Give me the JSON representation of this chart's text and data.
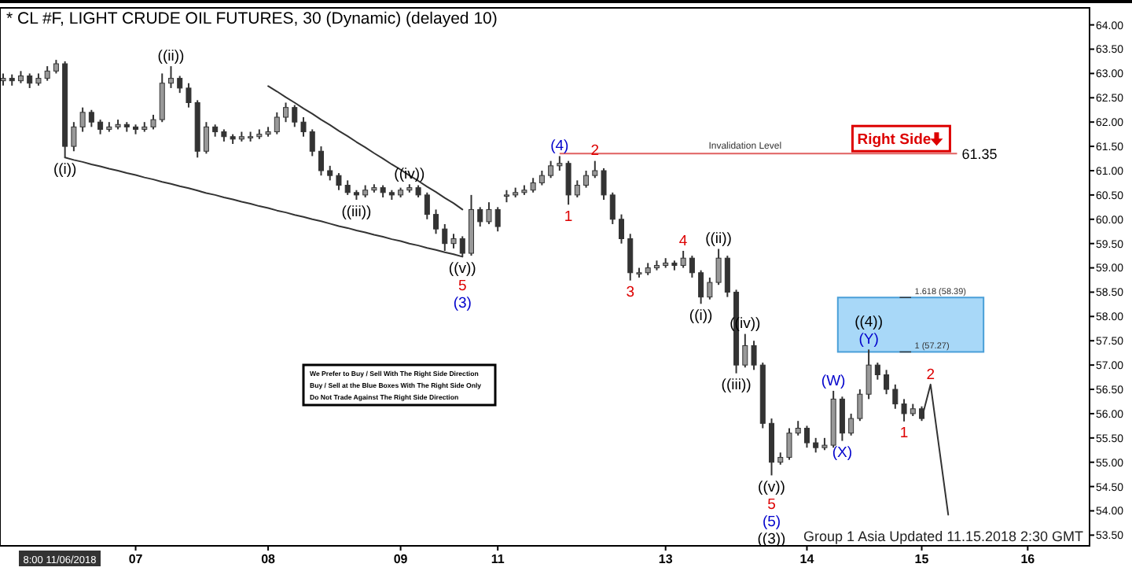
{
  "chart_data": {
    "type": "candlestick",
    "title": "* CL #F, LIGHT CRUDE OIL FUTURES, 30 (Dynamic) (delayed 10)",
    "categories": [
      null,
      null,
      null,
      null,
      null,
      null,
      null,
      null,
      null,
      null,
      null,
      null,
      null,
      null,
      null,
      "07",
      null,
      null,
      null,
      null,
      null,
      null,
      null,
      null,
      null,
      null,
      null,
      null,
      null,
      null,
      "08",
      null,
      null,
      null,
      null,
      null,
      null,
      null,
      null,
      null,
      null,
      null,
      null,
      null,
      null,
      "09",
      null,
      null,
      null,
      null,
      null,
      null,
      null,
      null,
      null,
      null,
      "11",
      null,
      null,
      null,
      null,
      null,
      null,
      null,
      null,
      null,
      null,
      null,
      null,
      null,
      null,
      null,
      null,
      null,
      null,
      "13",
      null,
      null,
      null,
      null,
      null,
      null,
      null,
      null,
      null,
      null,
      null,
      null,
      null,
      null,
      null,
      "14",
      null,
      null,
      null,
      null,
      null,
      null,
      null,
      null,
      null,
      null,
      null,
      null,
      "15",
      null,
      null,
      null,
      null,
      null,
      null,
      null,
      null,
      null,
      null,
      null,
      "16",
      null,
      null,
      null,
      null,
      null,
      null,
      null
    ],
    "ohlc": [
      [
        62.85,
        63.0,
        62.75,
        62.9
      ],
      [
        62.9,
        62.98,
        62.75,
        62.85
      ],
      [
        62.85,
        63.05,
        62.8,
        62.95
      ],
      [
        62.95,
        63.0,
        62.7,
        62.8
      ],
      [
        62.8,
        63.0,
        62.75,
        62.9
      ],
      [
        62.9,
        63.15,
        62.85,
        63.05
      ],
      [
        63.05,
        63.28,
        63.0,
        63.2
      ],
      [
        63.2,
        63.25,
        61.27,
        61.5
      ],
      [
        61.5,
        62.0,
        61.4,
        61.9
      ],
      [
        61.9,
        62.3,
        61.8,
        62.2
      ],
      [
        62.2,
        62.25,
        61.9,
        62.0
      ],
      [
        62.0,
        62.05,
        61.75,
        61.85
      ],
      [
        61.85,
        62.0,
        61.8,
        61.9
      ],
      [
        61.9,
        62.05,
        61.85,
        61.95
      ],
      [
        61.95,
        62.0,
        61.8,
        61.9
      ],
      [
        61.9,
        61.95,
        61.75,
        61.85
      ],
      [
        61.85,
        62.0,
        61.8,
        61.9
      ],
      [
        61.9,
        62.15,
        61.85,
        62.05
      ],
      [
        62.05,
        63.0,
        62.0,
        62.8
      ],
      [
        62.8,
        63.15,
        62.7,
        62.9
      ],
      [
        62.9,
        62.95,
        62.6,
        62.7
      ],
      [
        62.7,
        62.8,
        62.3,
        62.4
      ],
      [
        62.4,
        62.45,
        61.27,
        61.4
      ],
      [
        61.4,
        62.0,
        61.35,
        61.9
      ],
      [
        61.9,
        61.95,
        61.7,
        61.8
      ],
      [
        61.8,
        61.85,
        61.6,
        61.7
      ],
      [
        61.7,
        61.75,
        61.55,
        61.65
      ],
      [
        61.65,
        61.8,
        61.6,
        61.7
      ],
      [
        61.7,
        61.8,
        61.6,
        61.7
      ],
      [
        61.7,
        61.85,
        61.65,
        61.75
      ],
      [
        61.75,
        61.9,
        61.7,
        61.8
      ],
      [
        61.8,
        62.2,
        61.75,
        62.1
      ],
      [
        62.1,
        62.4,
        62.0,
        62.3
      ],
      [
        62.3,
        62.35,
        61.9,
        62.0
      ],
      [
        62.0,
        62.1,
        61.7,
        61.8
      ],
      [
        61.8,
        61.85,
        61.3,
        61.4
      ],
      [
        61.4,
        61.5,
        60.9,
        61.0
      ],
      [
        61.0,
        61.1,
        60.8,
        60.9
      ],
      [
        60.9,
        60.95,
        60.6,
        60.7
      ],
      [
        60.7,
        60.8,
        60.5,
        60.55
      ],
      [
        60.55,
        60.6,
        60.4,
        60.5
      ],
      [
        60.5,
        60.7,
        60.45,
        60.6
      ],
      [
        60.6,
        60.72,
        60.55,
        60.65
      ],
      [
        60.65,
        60.7,
        60.45,
        60.55
      ],
      [
        60.55,
        60.6,
        60.4,
        60.5
      ],
      [
        60.5,
        60.65,
        60.45,
        60.6
      ],
      [
        60.6,
        60.72,
        60.55,
        60.65
      ],
      [
        60.65,
        60.7,
        60.45,
        60.5
      ],
      [
        60.5,
        60.55,
        60.0,
        60.1
      ],
      [
        60.1,
        60.2,
        59.7,
        59.8
      ],
      [
        59.8,
        59.9,
        59.35,
        59.5
      ],
      [
        59.5,
        59.7,
        59.4,
        59.6
      ],
      [
        59.6,
        59.65,
        59.23,
        59.3
      ],
      [
        59.3,
        60.5,
        59.25,
        60.2
      ],
      [
        60.2,
        60.25,
        59.85,
        59.95
      ],
      [
        59.95,
        60.35,
        59.9,
        60.2
      ],
      [
        60.2,
        60.25,
        59.75,
        59.85
      ],
      [
        60.5,
        60.6,
        60.35,
        60.5
      ],
      [
        60.5,
        60.65,
        60.45,
        60.55
      ],
      [
        60.55,
        60.7,
        60.5,
        60.6
      ],
      [
        60.6,
        60.85,
        60.55,
        60.75
      ],
      [
        60.75,
        61.0,
        60.7,
        60.9
      ],
      [
        60.9,
        61.2,
        60.85,
        61.1
      ],
      [
        61.1,
        61.3,
        61.0,
        61.15
      ],
      [
        61.15,
        61.2,
        60.3,
        60.5
      ],
      [
        60.5,
        60.8,
        60.45,
        60.7
      ],
      [
        60.7,
        61.0,
        60.65,
        60.9
      ],
      [
        60.9,
        61.2,
        60.85,
        61.0
      ],
      [
        61.0,
        61.05,
        60.4,
        60.5
      ],
      [
        60.5,
        60.55,
        59.9,
        60.0
      ],
      [
        60.0,
        60.1,
        59.5,
        59.6
      ],
      [
        59.6,
        59.7,
        58.74,
        58.9
      ],
      [
        58.9,
        59.0,
        58.8,
        58.9
      ],
      [
        58.9,
        59.1,
        58.85,
        59.0
      ],
      [
        59.0,
        59.15,
        58.95,
        59.05
      ],
      [
        59.05,
        59.2,
        59.0,
        59.1
      ],
      [
        59.1,
        59.15,
        58.95,
        59.05
      ],
      [
        59.05,
        59.35,
        59.0,
        59.2
      ],
      [
        59.2,
        59.25,
        58.8,
        58.9
      ],
      [
        58.9,
        58.95,
        58.26,
        58.4
      ],
      [
        58.4,
        58.8,
        58.35,
        58.7
      ],
      [
        58.7,
        59.39,
        58.65,
        59.2
      ],
      [
        59.2,
        59.25,
        58.4,
        58.5
      ],
      [
        58.5,
        58.55,
        56.83,
        57.0
      ],
      [
        57.0,
        57.64,
        56.95,
        57.4
      ],
      [
        57.4,
        57.5,
        56.9,
        57.0
      ],
      [
        57.0,
        57.05,
        55.7,
        55.8
      ],
      [
        55.8,
        55.9,
        54.73,
        55.0
      ],
      [
        55.0,
        55.2,
        54.95,
        55.1
      ],
      [
        55.1,
        55.7,
        55.05,
        55.6
      ],
      [
        55.6,
        55.85,
        55.55,
        55.7
      ],
      [
        55.7,
        55.75,
        55.3,
        55.4
      ],
      [
        55.4,
        55.5,
        55.2,
        55.3
      ],
      [
        55.3,
        55.5,
        55.25,
        55.35
      ],
      [
        55.35,
        56.47,
        55.3,
        56.3
      ],
      [
        56.3,
        56.35,
        55.44,
        55.6
      ],
      [
        55.6,
        56.0,
        55.55,
        55.9
      ],
      [
        55.9,
        56.5,
        55.85,
        56.4
      ],
      [
        56.4,
        57.32,
        56.3,
        57.0
      ],
      [
        57.0,
        57.05,
        56.7,
        56.8
      ],
      [
        56.8,
        56.9,
        56.4,
        56.5
      ],
      [
        56.5,
        56.6,
        56.1,
        56.2
      ],
      [
        56.2,
        56.3,
        55.84,
        56.0
      ],
      [
        56.0,
        56.2,
        55.95,
        56.1
      ],
      [
        56.1,
        56.15,
        55.85,
        55.9
      ],
      null,
      null,
      null,
      null,
      null,
      null,
      null,
      null,
      null,
      null,
      null,
      null,
      null,
      null,
      null,
      null,
      null,
      null,
      null
    ],
    "color": "#333333",
    "series": [
      {
        "type": "line",
        "color": "#333333",
        "values": [
          null,
          null,
          null,
          null,
          null,
          null,
          null,
          null,
          null,
          null,
          null,
          null,
          null,
          null,
          null,
          null,
          null,
          null,
          null,
          null,
          null,
          null,
          null,
          null,
          null,
          null,
          null,
          null,
          null,
          null,
          62.74,
          62.63,
          62.51,
          62.4,
          62.28,
          62.17,
          62.05,
          61.94,
          61.82,
          61.71,
          61.59,
          61.48,
          61.36,
          61.25,
          61.13,
          61.02,
          60.9,
          60.79,
          60.67,
          60.56,
          60.44,
          60.33,
          60.2,
          null,
          null,
          null,
          null,
          null,
          null,
          null,
          null,
          null,
          null,
          null,
          null,
          null,
          null,
          null,
          null,
          null,
          null,
          null,
          null,
          null,
          null,
          null,
          null,
          null,
          null,
          null,
          null,
          null,
          null,
          null,
          null,
          null,
          null,
          null,
          null,
          null,
          null,
          null,
          null,
          null,
          null,
          null,
          null,
          null,
          null,
          null,
          null,
          null,
          null,
          null,
          null,
          null,
          null,
          null,
          null,
          null,
          null,
          null,
          null,
          null,
          null,
          null,
          null,
          null,
          null,
          null,
          null,
          null,
          null,
          null
        ]
      },
      {
        "type": "line",
        "color": "#333333",
        "values": [
          null,
          null,
          null,
          null,
          null,
          null,
          null,
          61.27,
          61.22,
          61.18,
          61.13,
          61.09,
          61.04,
          61.0,
          60.95,
          60.91,
          60.86,
          60.82,
          60.77,
          60.73,
          60.68,
          60.64,
          60.59,
          60.54,
          60.5,
          60.45,
          60.41,
          60.36,
          60.32,
          60.27,
          60.23,
          60.18,
          60.14,
          60.09,
          60.05,
          60.0,
          59.96,
          59.91,
          59.86,
          59.82,
          59.77,
          59.73,
          59.68,
          59.64,
          59.59,
          59.55,
          59.5,
          59.46,
          59.41,
          59.37,
          59.32,
          59.28,
          59.23,
          null,
          null,
          null,
          null,
          null,
          null,
          null,
          null,
          null,
          null,
          null,
          null,
          null,
          null,
          null,
          null,
          null,
          null,
          null,
          null,
          null,
          null,
          null,
          null,
          null,
          null,
          null,
          null,
          null,
          null,
          null,
          null,
          null,
          null,
          null,
          null,
          null,
          null,
          null,
          null,
          null,
          null,
          null,
          null,
          null,
          null,
          null,
          null,
          null,
          null,
          null,
          null,
          null,
          null,
          null,
          null,
          null,
          null,
          null,
          null,
          null,
          null,
          null,
          null,
          null,
          null,
          null,
          null,
          null,
          null,
          null
        ]
      },
      {
        "type": "line",
        "color": "#333333",
        "values": [
          null,
          null,
          null,
          null,
          null,
          null,
          null,
          null,
          null,
          null,
          null,
          null,
          null,
          null,
          null,
          null,
          null,
          null,
          null,
          null,
          null,
          null,
          null,
          null,
          null,
          null,
          null,
          null,
          null,
          null,
          null,
          null,
          null,
          null,
          null,
          null,
          null,
          null,
          null,
          null,
          null,
          null,
          null,
          null,
          null,
          null,
          null,
          null,
          null,
          null,
          null,
          null,
          null,
          null,
          null,
          null,
          null,
          null,
          null,
          null,
          null,
          null,
          null,
          null,
          null,
          null,
          null,
          null,
          null,
          null,
          null,
          null,
          null,
          null,
          null,
          null,
          null,
          null,
          null,
          null,
          null,
          null,
          null,
          null,
          null,
          null,
          null,
          null,
          null,
          null,
          null,
          null,
          null,
          null,
          null,
          null,
          null,
          null,
          null,
          null,
          null,
          null,
          null,
          null,
          55.9,
          56.6,
          55.26,
          53.92,
          null,
          null,
          null,
          null,
          null,
          null,
          null,
          null,
          null,
          null,
          null,
          null,
          null,
          null,
          null,
          null
        ]
      }
    ],
    "ylim": [
      53.28,
      64.35
    ],
    "yticks": [
      {
        "value": 53.5,
        "label": "53.50"
      },
      {
        "value": 54,
        "label": "54.00"
      },
      {
        "value": 54.5,
        "label": "54.50"
      },
      {
        "value": 55,
        "label": "55.00"
      },
      {
        "value": 55.5,
        "label": "55.50"
      },
      {
        "value": 56,
        "label": "56.00"
      },
      {
        "value": 56.5,
        "label": "56.50"
      },
      {
        "value": 57,
        "label": "57.00"
      },
      {
        "value": 57.5,
        "label": "57.50"
      },
      {
        "value": 58,
        "label": "58.00"
      },
      {
        "value": 58.5,
        "label": "58.50"
      },
      {
        "value": 59,
        "label": "59.00"
      },
      {
        "value": 59.5,
        "label": "59.50"
      },
      {
        "value": 60,
        "label": "60.00"
      },
      {
        "value": 60.5,
        "label": "60.50"
      },
      {
        "value": 61,
        "label": "61.00"
      },
      {
        "value": 61.5,
        "label": "61.50"
      },
      {
        "value": 62,
        "label": "62.00"
      },
      {
        "value": 62.5,
        "label": "62.50"
      },
      {
        "value": 63,
        "label": "63.00"
      },
      {
        "value": 63.5,
        "label": "63.50"
      },
      {
        "value": 64,
        "label": "64.00"
      }
    ],
    "ref_lines": [
      {
        "axis": "y",
        "value": 61.35,
        "label": "61.35",
        "color": "#e06060"
      }
    ],
    "bands": [
      {
        "axis": "y",
        "from": 57.27,
        "to": 58.39,
        "color": "#a8d8f8"
      }
    ],
    "annotations": [
      "((i))",
      "((ii))",
      "((iii))",
      "((iv))",
      "((v))",
      "5",
      "(3)",
      "(4)",
      "2",
      "1",
      "3",
      "4",
      "((ii))",
      "((i))",
      "((iv))",
      "((iii))",
      "((v))",
      "5",
      "(5)",
      "((3))",
      "(W)",
      "(X)",
      "((4))",
      "(Y)",
      "1",
      "2",
      {
        "text": "Invalidation Level",
        "y": 61.35
      },
      "Right Side",
      {
        "text": "1.618 (58.39)",
        "y": 58.39
      },
      {
        "text": "1 (57.27)",
        "y": 57.27
      },
      "We Prefer to Buy / Sell With The Right Side Direction",
      "Buy / Sell at the Blue Boxes With The Right Side Only",
      "Do Not Trade Against The Right Side Direction",
      "Group 1 Asia Updated 11.15.2018 2:30 GMT",
      "8:00 11/06/2018"
    ]
  }
}
